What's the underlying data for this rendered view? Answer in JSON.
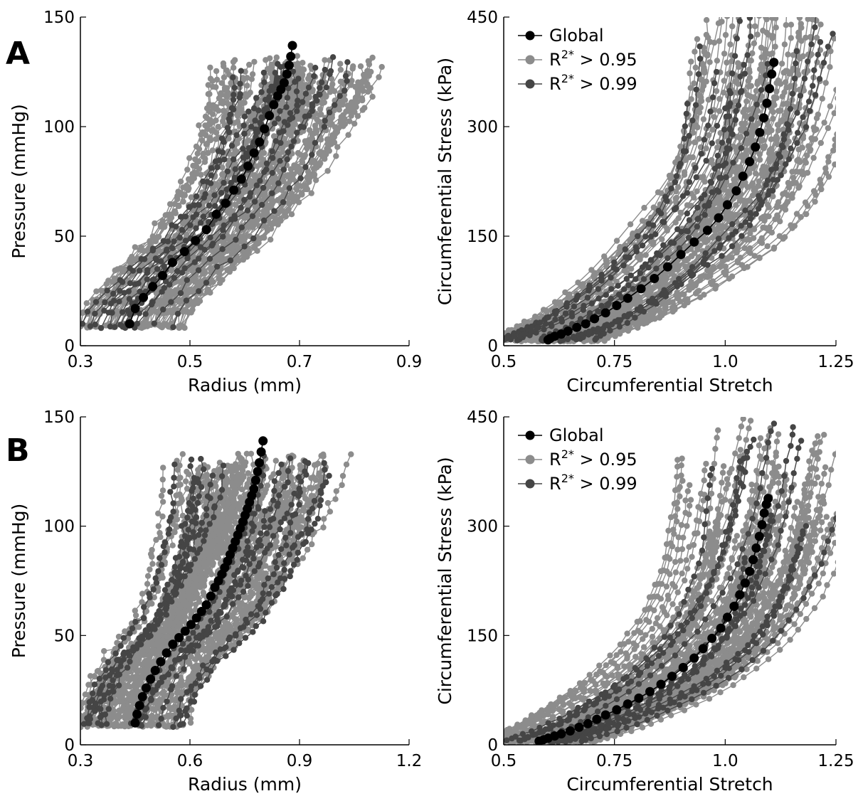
{
  "colors": {
    "global": "#000000",
    "r95": "#8c8c8c",
    "r99": "#454545",
    "axis": "#000000"
  },
  "chart_data": [
    {
      "id": "A-left",
      "type": "line",
      "panel_label": "A",
      "xlabel": "Radius (mm)",
      "ylabel": "Pressure (mmHg)",
      "xlim": [
        0.3,
        0.9
      ],
      "ylim": [
        0,
        150
      ],
      "xticks": [
        "0.3",
        "0.5",
        "0.7",
        "0.9"
      ],
      "yticks": [
        "0",
        "50",
        "100",
        "150"
      ],
      "legend": null,
      "series": [
        {
          "name": "Global",
          "x": [
            0.39,
            0.4,
            0.415,
            0.432,
            0.45,
            0.468,
            0.49,
            0.51,
            0.53,
            0.548,
            0.565,
            0.58,
            0.594,
            0.606,
            0.617,
            0.627,
            0.636,
            0.645,
            0.653,
            0.66,
            0.666,
            0.672,
            0.677,
            0.681,
            0.684,
            0.687
          ],
          "y": [
            10,
            17,
            22,
            27,
            32,
            38,
            43,
            48,
            53,
            60,
            65,
            71,
            76,
            82,
            88,
            93,
            99,
            105,
            110,
            114,
            117,
            120,
            124,
            128,
            132,
            137
          ]
        }
      ],
      "ensembles": [
        "R2* > 0.95",
        "R2* > 0.99"
      ]
    },
    {
      "id": "A-right",
      "type": "line",
      "xlabel": "Circumferential Stretch",
      "ylabel": "Circumferential Stress (kPa)",
      "xlim": [
        0.5,
        1.25
      ],
      "ylim": [
        0,
        450
      ],
      "xticks": [
        "0.5",
        "0.75",
        "1.0",
        "1.25"
      ],
      "yticks": [
        "0",
        "150",
        "300",
        "450"
      ],
      "legend": {
        "position": "top-left",
        "entries": [
          {
            "label": "Global",
            "sup": "",
            "rest": ""
          },
          {
            "label": "R",
            "sup": "2*",
            "rest": " > 0.95"
          },
          {
            "label": "R",
            "sup": "2*",
            "rest": " > 0.99"
          }
        ]
      },
      "series": [
        {
          "name": "Global",
          "x": [
            0.6,
            0.605,
            0.615,
            0.63,
            0.645,
            0.665,
            0.685,
            0.705,
            0.73,
            0.755,
            0.78,
            0.81,
            0.84,
            0.87,
            0.9,
            0.93,
            0.96,
            0.985,
            1.005,
            1.025,
            1.04,
            1.055,
            1.068,
            1.078,
            1.087,
            1.094,
            1.1,
            1.105,
            1.11
          ],
          "y": [
            8,
            10,
            13,
            16,
            20,
            25,
            30,
            37,
            45,
            55,
            65,
            78,
            92,
            108,
            125,
            142,
            158,
            175,
            193,
            212,
            232,
            252,
            272,
            292,
            312,
            332,
            352,
            372,
            388
          ]
        }
      ],
      "ensembles": [
        "R2* > 0.95",
        "R2* > 0.99"
      ]
    },
    {
      "id": "B-left",
      "type": "line",
      "panel_label": "B",
      "xlabel": "Radius (mm)",
      "ylabel": "Pressure (mmHg)",
      "xlim": [
        0.3,
        1.2
      ],
      "ylim": [
        0,
        150
      ],
      "xticks": [
        "0.3",
        "0.6",
        "0.9",
        "1.2"
      ],
      "yticks": [
        "0",
        "50",
        "100",
        "150"
      ],
      "legend": null,
      "series": [
        {
          "name": "Global",
          "x": [
            0.45,
            0.455,
            0.462,
            0.47,
            0.48,
            0.492,
            0.505,
            0.52,
            0.536,
            0.553,
            0.57,
            0.587,
            0.603,
            0.618,
            0.632,
            0.645,
            0.657,
            0.668,
            0.678,
            0.687,
            0.695,
            0.703,
            0.71,
            0.717,
            0.724,
            0.731,
            0.738,
            0.745,
            0.751,
            0.757,
            0.763,
            0.769,
            0.775,
            0.78,
            0.785,
            0.79,
            0.795,
            0.8
          ],
          "y": [
            10,
            14,
            18,
            22,
            26,
            30,
            34,
            38,
            42,
            46,
            49,
            52,
            55,
            58,
            61,
            64,
            68,
            72,
            75,
            78,
            81,
            84,
            87,
            90,
            93,
            96,
            99,
            102,
            105,
            108,
            111,
            114,
            117,
            121,
            125,
            129,
            134,
            139
          ]
        }
      ],
      "ensembles": [
        "R2* > 0.95",
        "R2* > 0.99"
      ]
    },
    {
      "id": "B-right",
      "type": "line",
      "xlabel": "Circumferential Stretch",
      "ylabel": "Circumferential Stress (kPa)",
      "xlim": [
        0.5,
        1.25
      ],
      "ylim": [
        0,
        450
      ],
      "xticks": [
        "0.5",
        "0.75",
        "1.0",
        "1.25"
      ],
      "yticks": [
        "0",
        "150",
        "300",
        "450"
      ],
      "legend": {
        "position": "top-left",
        "entries": [
          {
            "label": "Global",
            "sup": "",
            "rest": ""
          },
          {
            "label": "R",
            "sup": "2*",
            "rest": " > 0.95"
          },
          {
            "label": "R",
            "sup": "2*",
            "rest": " > 0.99"
          }
        ]
      },
      "series": [
        {
          "name": "Global",
          "x": [
            0.58,
            0.59,
            0.6,
            0.615,
            0.63,
            0.65,
            0.67,
            0.69,
            0.71,
            0.73,
            0.755,
            0.78,
            0.805,
            0.83,
            0.855,
            0.88,
            0.905,
            0.93,
            0.95,
            0.97,
            0.99,
            1.005,
            1.02,
            1.033,
            1.045,
            1.055,
            1.063,
            1.07,
            1.077,
            1.083,
            1.088,
            1.093,
            1.097
          ],
          "y": [
            5,
            7,
            9,
            12,
            15,
            19,
            24,
            29,
            35,
            41,
            48,
            56,
            64,
            73,
            83,
            94,
            106,
            119,
            132,
            146,
            160,
            175,
            190,
            206,
            222,
            238,
            254,
            270,
            286,
            302,
            318,
            330,
            338
          ]
        }
      ],
      "ensembles": [
        "R2* > 0.95",
        "R2* > 0.99"
      ]
    }
  ]
}
